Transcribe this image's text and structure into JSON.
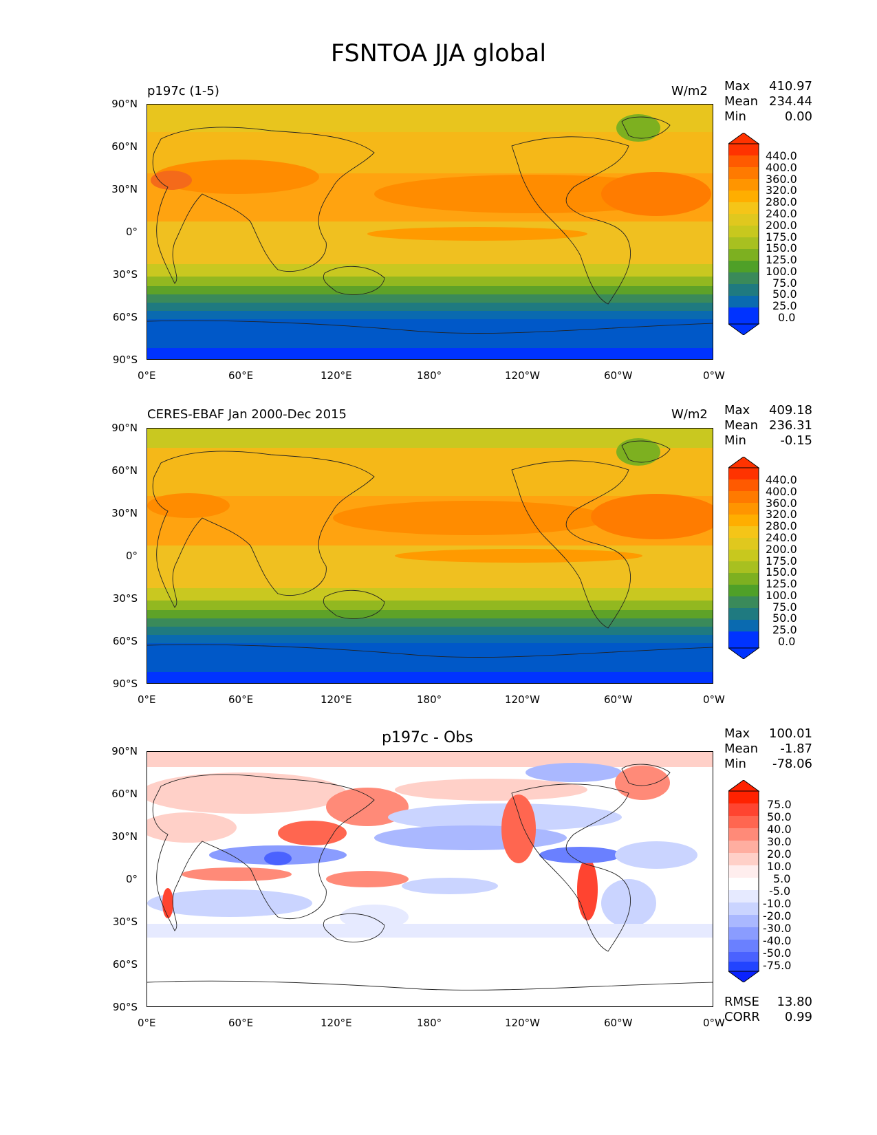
{
  "figure": {
    "title": "FSNTOA JJA global"
  },
  "x_ticks": [
    "0°E",
    "60°E",
    "120°E",
    "180°",
    "120°W",
    "60°W",
    "0°W"
  ],
  "y_ticks": [
    "90°N",
    "60°N",
    "30°N",
    "0°",
    "30°S",
    "60°S",
    "90°S"
  ],
  "panels": [
    {
      "title_left": "p197c (1-5)",
      "title_right": "W/m2",
      "stats": {
        "max_label": "Max",
        "max": "410.97",
        "mean_label": "Mean",
        "mean": "234.44",
        "min_label": "Min",
        "min": "0.00"
      },
      "colorbar": [
        "440.0",
        "400.0",
        "360.0",
        "320.0",
        "280.0",
        "240.0",
        "200.0",
        "175.0",
        "150.0",
        "125.0",
        "100.0",
        "75.0",
        "50.0",
        "25.0",
        "0.0"
      ]
    },
    {
      "title_left": "CERES-EBAF Jan 2000-Dec 2015",
      "title_right": "W/m2",
      "stats": {
        "max_label": "Max",
        "max": "409.18",
        "mean_label": "Mean",
        "mean": "236.31",
        "min_label": "Min",
        "min": "-0.15"
      },
      "colorbar": [
        "440.0",
        "400.0",
        "360.0",
        "320.0",
        "280.0",
        "240.0",
        "200.0",
        "175.0",
        "150.0",
        "125.0",
        "100.0",
        "75.0",
        "50.0",
        "25.0",
        "0.0"
      ]
    },
    {
      "title_center": "p197c - Obs",
      "stats": {
        "max_label": "Max",
        "max": "100.01",
        "mean_label": "Mean",
        "mean": "-1.87",
        "min_label": "Min",
        "min": "-78.06"
      },
      "colorbar": [
        "75.0",
        "50.0",
        "40.0",
        "30.0",
        "20.0",
        "10.0",
        "5.0",
        "-5.0",
        "-10.0",
        "-20.0",
        "-30.0",
        "-40.0",
        "-50.0",
        "-75.0"
      ],
      "rmse_label": "RMSE",
      "rmse": "13.80",
      "corr_label": "CORR",
      "corr": "0.99"
    }
  ],
  "colors": {
    "abs_scale": [
      "#ff3300",
      "#ff5a00",
      "#ff7a00",
      "#ff9500",
      "#ffae00",
      "#f5c518",
      "#e0c81e",
      "#c8c81e",
      "#a8c020",
      "#7db020",
      "#4fa028",
      "#3a8a5a",
      "#1f7a80",
      "#0a6ab0",
      "#0055c8",
      "#0033ff"
    ],
    "diff_scale": [
      "#ff2200",
      "#ff4430",
      "#ff6650",
      "#ff8a78",
      "#ffaea0",
      "#ffd0c8",
      "#ffeeee",
      "#ffffff",
      "#e6eaff",
      "#cad4ff",
      "#aab8ff",
      "#8a9cff",
      "#6a80ff",
      "#4a62ff",
      "#2244ff",
      "#0a22ff"
    ]
  }
}
